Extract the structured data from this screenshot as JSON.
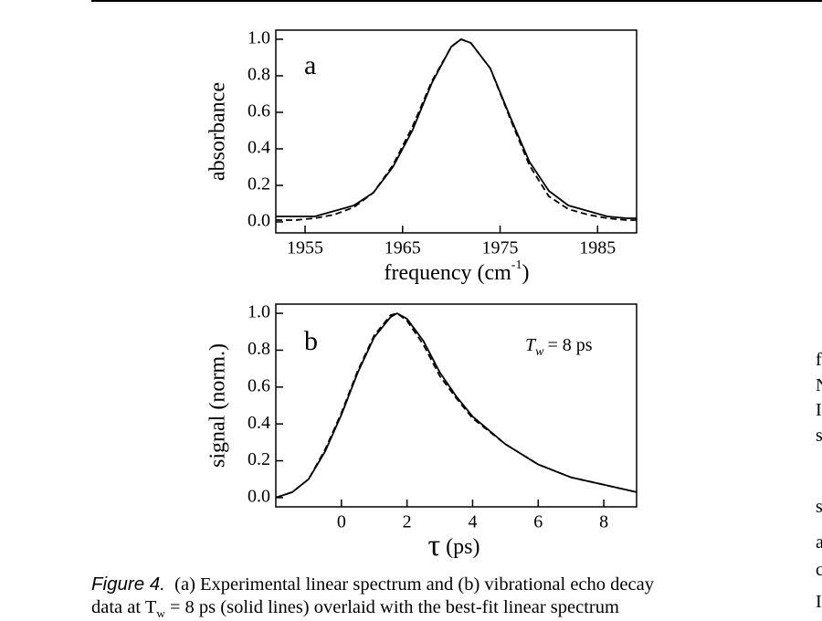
{
  "chart_data": [
    {
      "type": "line",
      "panel": "a",
      "x_label": "frequency (cm",
      "x_label_sup": "-1",
      "x_label_end": ")",
      "y_label": "absorbance",
      "x": [
        1952,
        1954,
        1956,
        1958,
        1960,
        1962,
        1964,
        1966,
        1968,
        1970,
        1971,
        1972,
        1974,
        1976,
        1978,
        1980,
        1982,
        1984,
        1986,
        1988,
        1989
      ],
      "series": [
        {
          "color": "#000000",
          "style": "solid",
          "values": [
            0.03,
            0.03,
            0.03,
            0.06,
            0.09,
            0.16,
            0.3,
            0.5,
            0.76,
            0.96,
            1.0,
            0.98,
            0.84,
            0.58,
            0.33,
            0.17,
            0.09,
            0.06,
            0.03,
            0.02,
            0.02
          ]
        },
        {
          "color": "#000000",
          "style": "dashed",
          "values": [
            0.01,
            0.01,
            0.02,
            0.04,
            0.08,
            0.16,
            0.31,
            0.52,
            0.77,
            0.96,
            1.0,
            0.98,
            0.84,
            0.57,
            0.31,
            0.14,
            0.07,
            0.04,
            0.02,
            0.01,
            0.01
          ]
        }
      ],
      "xlim": [
        1952,
        1989
      ],
      "ylim": [
        -0.06,
        1.05
      ],
      "xticks": [
        1955,
        1965,
        1975,
        1985
      ],
      "yticks": [
        {
          "value": 0,
          "label": "0.0"
        },
        {
          "value": 0.2,
          "label": "0.2"
        },
        {
          "value": 0.4,
          "label": "0.4"
        },
        {
          "value": 0.6,
          "label": "0.6"
        },
        {
          "value": 0.8,
          "label": "0.8"
        },
        {
          "value": 1,
          "label": "1.0"
        }
      ]
    },
    {
      "type": "line",
      "panel": "b",
      "annotation": "T",
      "annotation_sub": "w",
      "annotation_end": "= 8 ps",
      "x_label": "τ",
      "x_label_end": "(ps)",
      "y_label": "signal (norm.)",
      "x": [
        -2,
        -1.5,
        -1,
        -0.5,
        0,
        0.5,
        1,
        1.5,
        1.7,
        2,
        2.5,
        3,
        3.5,
        4,
        5,
        6,
        7,
        8,
        9
      ],
      "series": [
        {
          "color": "#000000",
          "style": "solid",
          "values": [
            0.0,
            0.03,
            0.1,
            0.25,
            0.45,
            0.68,
            0.87,
            0.98,
            1.0,
            0.97,
            0.85,
            0.68,
            0.55,
            0.44,
            0.29,
            0.18,
            0.11,
            0.07,
            0.03
          ]
        },
        {
          "color": "#000000",
          "style": "dashed",
          "values": [
            0.0,
            0.03,
            0.1,
            0.26,
            0.46,
            0.69,
            0.88,
            0.99,
            1.0,
            0.96,
            0.83,
            0.66,
            0.54,
            0.43,
            0.29,
            0.18,
            0.11,
            0.07,
            0.03
          ]
        }
      ],
      "xlim": [
        -2,
        9
      ],
      "ylim": [
        -0.05,
        1.05
      ],
      "xticks": [
        0,
        2,
        4,
        6,
        8
      ],
      "yticks": [
        {
          "value": 0,
          "label": "0.0"
        },
        {
          "value": 0.2,
          "label": "0.2"
        },
        {
          "value": 0.4,
          "label": "0.4"
        },
        {
          "value": 0.6,
          "label": "0.6"
        },
        {
          "value": 0.8,
          "label": "0.8"
        },
        {
          "value": 1,
          "label": "1.0"
        }
      ]
    }
  ],
  "caption": {
    "label": "Figure 4.",
    "line1": "(a) Experimental linear spectrum and (b) vibrational echo decay",
    "line2_start": "data at T",
    "line2_sub": "w",
    "line2_end": " = 8 ps (solid lines) overlaid with the best-fit linear spectrum"
  },
  "margin_text": [
    "f",
    "N",
    "I",
    "s",
    "s",
    "a",
    "c",
    "I"
  ]
}
